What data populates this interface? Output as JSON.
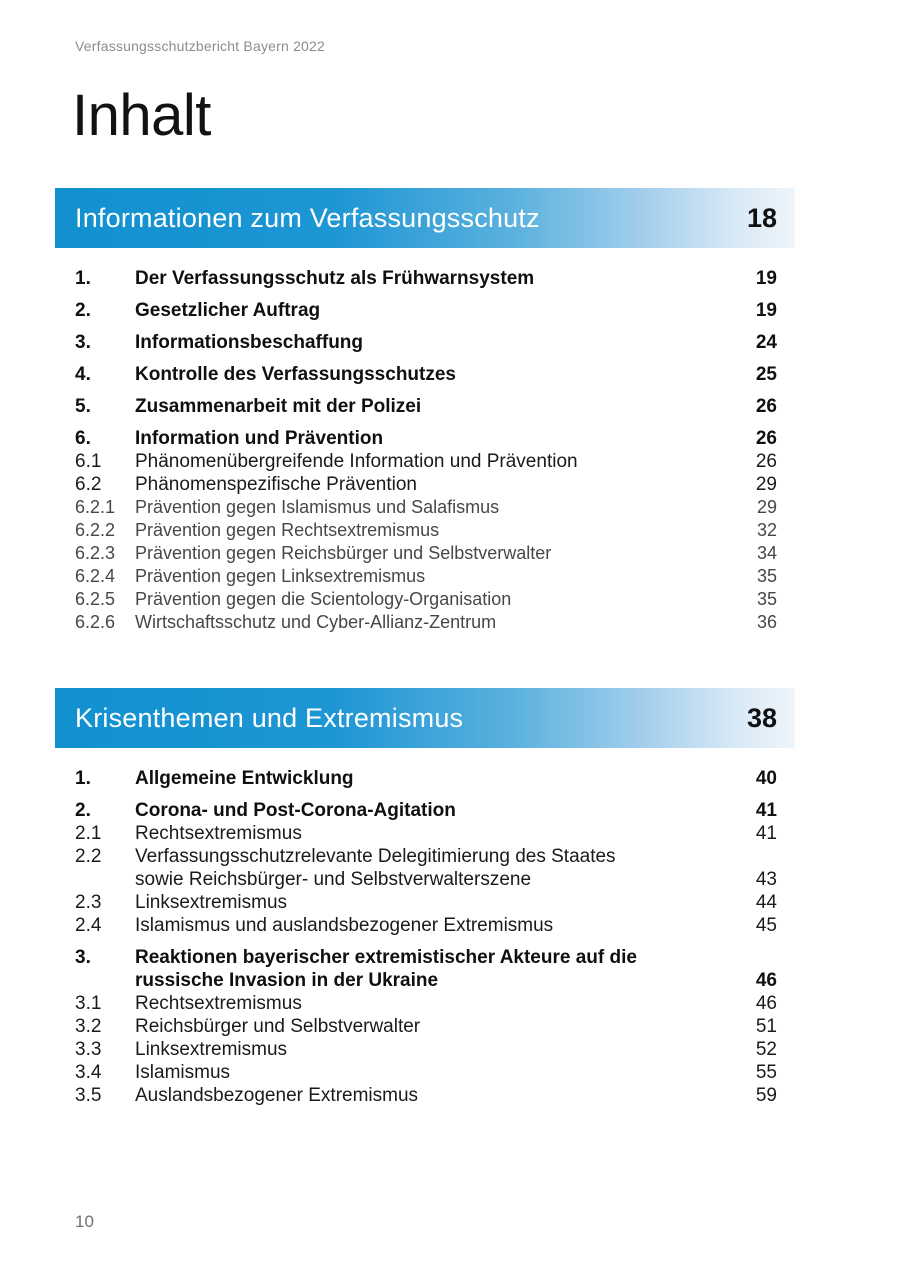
{
  "page": {
    "header": "Verfassungsschutzbericht Bayern 2022",
    "title": "Inhalt",
    "footer_page_number": "10"
  },
  "colors": {
    "bar_gradient_start": "#1190d0",
    "bar_gradient_end": "#eff5fb",
    "bar_title_text": "#ffffff",
    "meta_text": "#8c8c8c"
  },
  "sections": [
    {
      "title": "Informationen zum Verfassungsschutz",
      "page": "18",
      "entries": [
        {
          "num": "1.",
          "label": "Der Verfassungsschutz als Frühwarnsystem",
          "page": "19",
          "level": 1
        },
        {
          "num": "2.",
          "label": "Gesetzlicher Auftrag",
          "page": "19",
          "level": 1
        },
        {
          "num": "3.",
          "label": "Informationsbeschaffung",
          "page": "24",
          "level": 1
        },
        {
          "num": "4.",
          "label": "Kontrolle des Verfassungsschutzes",
          "page": "25",
          "level": 1
        },
        {
          "num": "5.",
          "label": "Zusammenarbeit mit der Polizei",
          "page": "26",
          "level": 1
        },
        {
          "num": "6.",
          "label": "Information und Prävention",
          "page": "26",
          "level": 1
        },
        {
          "num": "6.1",
          "label": "Phänomenübergreifende Information und Prävention",
          "page": "26",
          "level": 2
        },
        {
          "num": "6.2",
          "label": "Phänomenspezifische Prävention",
          "page": "29",
          "level": 2
        },
        {
          "num": "6.2.1",
          "label": "Prävention gegen Islamismus und Salafismus",
          "page": "29",
          "level": 3
        },
        {
          "num": "6.2.2",
          "label": "Prävention gegen Rechtsextremismus",
          "page": "32",
          "level": 3
        },
        {
          "num": "6.2.3",
          "label": "Prävention gegen Reichsbürger und Selbstverwalter",
          "page": "34",
          "level": 3
        },
        {
          "num": "6.2.4",
          "label": "Prävention gegen Linksextremismus",
          "page": "35",
          "level": 3
        },
        {
          "num": "6.2.5",
          "label": "Prävention gegen die Scientology-Organisation",
          "page": "35",
          "level": 3
        },
        {
          "num": "6.2.6",
          "label": "Wirtschaftsschutz und Cyber-Allianz-Zentrum",
          "page": "36",
          "level": 3
        }
      ]
    },
    {
      "title": "Krisenthemen und Extremismus",
      "page": "38",
      "entries": [
        {
          "num": "1.",
          "label": "Allgemeine Entwicklung",
          "page": "40",
          "level": 1
        },
        {
          "num": "2.",
          "label": "Corona- und Post-Corona-Agitation",
          "page": "41",
          "level": 1
        },
        {
          "num": "2.1",
          "label": "Rechtsextremismus",
          "page": "41",
          "level": 2
        },
        {
          "num": "2.2",
          "label": "Verfassungsschutzrelevante Delegitimierung des Staates\nsowie Reichsbürger- und Selbstverwalterszene",
          "page": "43",
          "level": 2
        },
        {
          "num": "2.3",
          "label": "Linksextremismus",
          "page": "44",
          "level": 2
        },
        {
          "num": "2.4",
          "label": "Islamismus und auslandsbezogener Extremismus",
          "page": "45",
          "level": 2
        },
        {
          "num": "3.",
          "label": "Reaktionen bayerischer extremistischer Akteure auf die\nrussische Invasion in der Ukraine",
          "page": "46",
          "level": 1
        },
        {
          "num": "3.1",
          "label": "Rechtsextremismus",
          "page": "46",
          "level": 2
        },
        {
          "num": "3.2",
          "label": "Reichsbürger und Selbstverwalter",
          "page": "51",
          "level": 2
        },
        {
          "num": "3.3",
          "label": "Linksextremismus",
          "page": "52",
          "level": 2
        },
        {
          "num": "3.4",
          "label": "Islamismus",
          "page": "55",
          "level": 2
        },
        {
          "num": "3.5",
          "label": "Auslandsbezogener Extremismus",
          "page": "59",
          "level": 2
        }
      ]
    }
  ]
}
